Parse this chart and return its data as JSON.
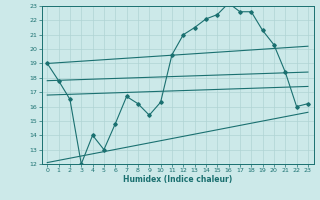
{
  "xlabel": "Humidex (Indice chaleur)",
  "bg_color": "#cce9e9",
  "grid_color": "#b0d4d4",
  "line_color": "#1a7070",
  "xlim": [
    -0.5,
    23.5
  ],
  "ylim": [
    12,
    23
  ],
  "xticks": [
    0,
    1,
    2,
    3,
    4,
    5,
    6,
    7,
    8,
    9,
    10,
    11,
    12,
    13,
    14,
    15,
    16,
    17,
    18,
    19,
    20,
    21,
    22,
    23
  ],
  "yticks": [
    12,
    13,
    14,
    15,
    16,
    17,
    18,
    19,
    20,
    21,
    22,
    23
  ],
  "main_x": [
    0,
    1,
    2,
    3,
    4,
    5,
    6,
    7,
    8,
    9,
    10,
    11,
    12,
    13,
    14,
    15,
    16,
    17,
    18,
    19,
    20,
    21,
    22,
    23
  ],
  "main_y": [
    19,
    17.8,
    16.5,
    12.0,
    14.0,
    13.0,
    14.8,
    16.7,
    16.2,
    15.4,
    16.3,
    19.6,
    21.0,
    21.5,
    22.1,
    22.4,
    23.2,
    22.6,
    22.6,
    21.3,
    20.3,
    18.4,
    16.0,
    16.2
  ],
  "upper_line_x": [
    0,
    23
  ],
  "upper_line_y": [
    19.0,
    20.2
  ],
  "mid_line_x": [
    0,
    23
  ],
  "mid_line_y": [
    17.8,
    18.4
  ],
  "lower_line_x": [
    0,
    23
  ],
  "lower_line_y": [
    16.8,
    17.4
  ],
  "bot_line_x": [
    0,
    23
  ],
  "bot_line_y": [
    12.1,
    15.6
  ]
}
